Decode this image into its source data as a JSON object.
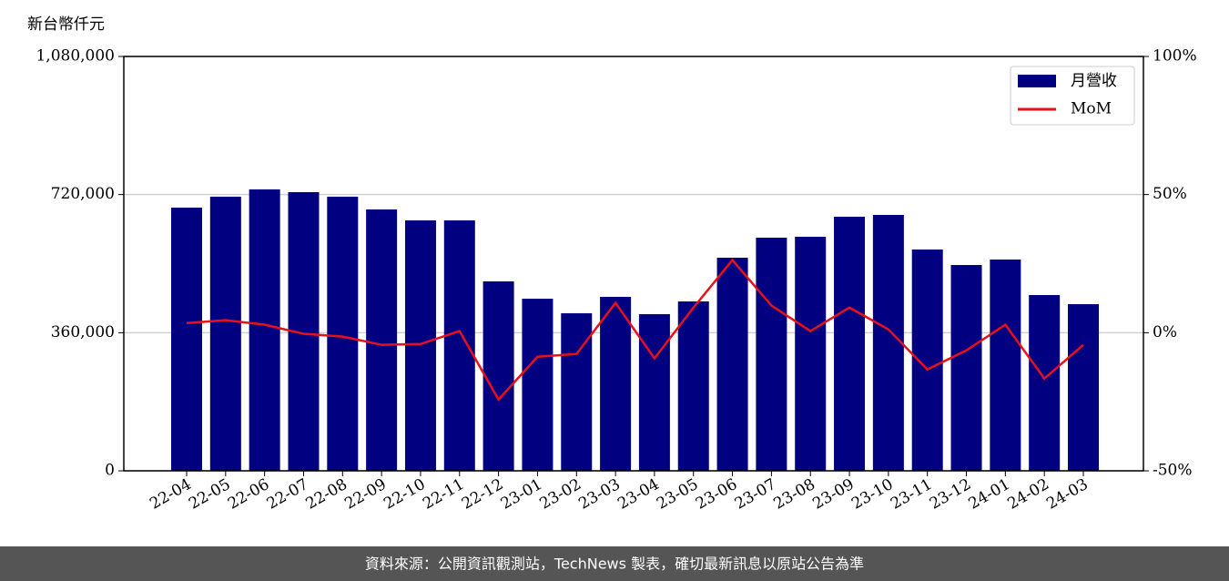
{
  "chart_data": {
    "type": "bar_line",
    "ylabel": "新台幣仟元",
    "categories": [
      "22-04",
      "22-05",
      "22-06",
      "22-07",
      "22-08",
      "22-09",
      "22-10",
      "22-11",
      "22-12",
      "23-01",
      "23-02",
      "23-03",
      "23-04",
      "23-05",
      "23-06",
      "23-07",
      "23-08",
      "23-09",
      "23-10",
      "23-11",
      "23-12",
      "24-01",
      "24-02",
      "24-03"
    ],
    "series": [
      {
        "name": "月營收",
        "type": "bar",
        "color": "#000080",
        "values": [
          686000,
          714500,
          733500,
          726300,
          714500,
          681200,
          652700,
          652700,
          493700,
          448600,
          410600,
          453400,
          408300,
          441500,
          555400,
          607600,
          610000,
          662200,
          667000,
          576800,
          536400,
          550700,
          458100,
          434400
        ]
      },
      {
        "name": "MoM",
        "type": "line",
        "axis": "y2",
        "color": "#e8101a",
        "values": [
          3.5,
          4.5,
          2.9,
          -0.4,
          -1.4,
          -4.4,
          -4.1,
          0.6,
          -24.2,
          -8.7,
          -7.7,
          10.8,
          -9.3,
          9.1,
          26.3,
          9.8,
          0.6,
          9.1,
          1.2,
          -13.3,
          -6.4,
          2.9,
          -16.6,
          -4.4
        ]
      }
    ],
    "ylim": [
      0,
      1080000
    ],
    "yticks": [
      0,
      {
        "value": 360000,
        "label": "360,000"
      },
      {
        "value": 720000,
        "label": "720,000"
      },
      {
        "value": 1080000,
        "label": "1,080,000"
      }
    ],
    "y2lim": [
      -50,
      100
    ],
    "y2ticks": [
      {
        "value": -50,
        "label": "-50%"
      },
      {
        "value": 0,
        "label": "0%"
      },
      {
        "value": 50,
        "label": "50%"
      },
      {
        "value": 100,
        "label": "100%"
      }
    ],
    "grid": true,
    "legend": "upper right"
  },
  "footer": "資料來源：公開資訊觀測站，TechNews 製表，確切最新訊息以原站公告為準"
}
